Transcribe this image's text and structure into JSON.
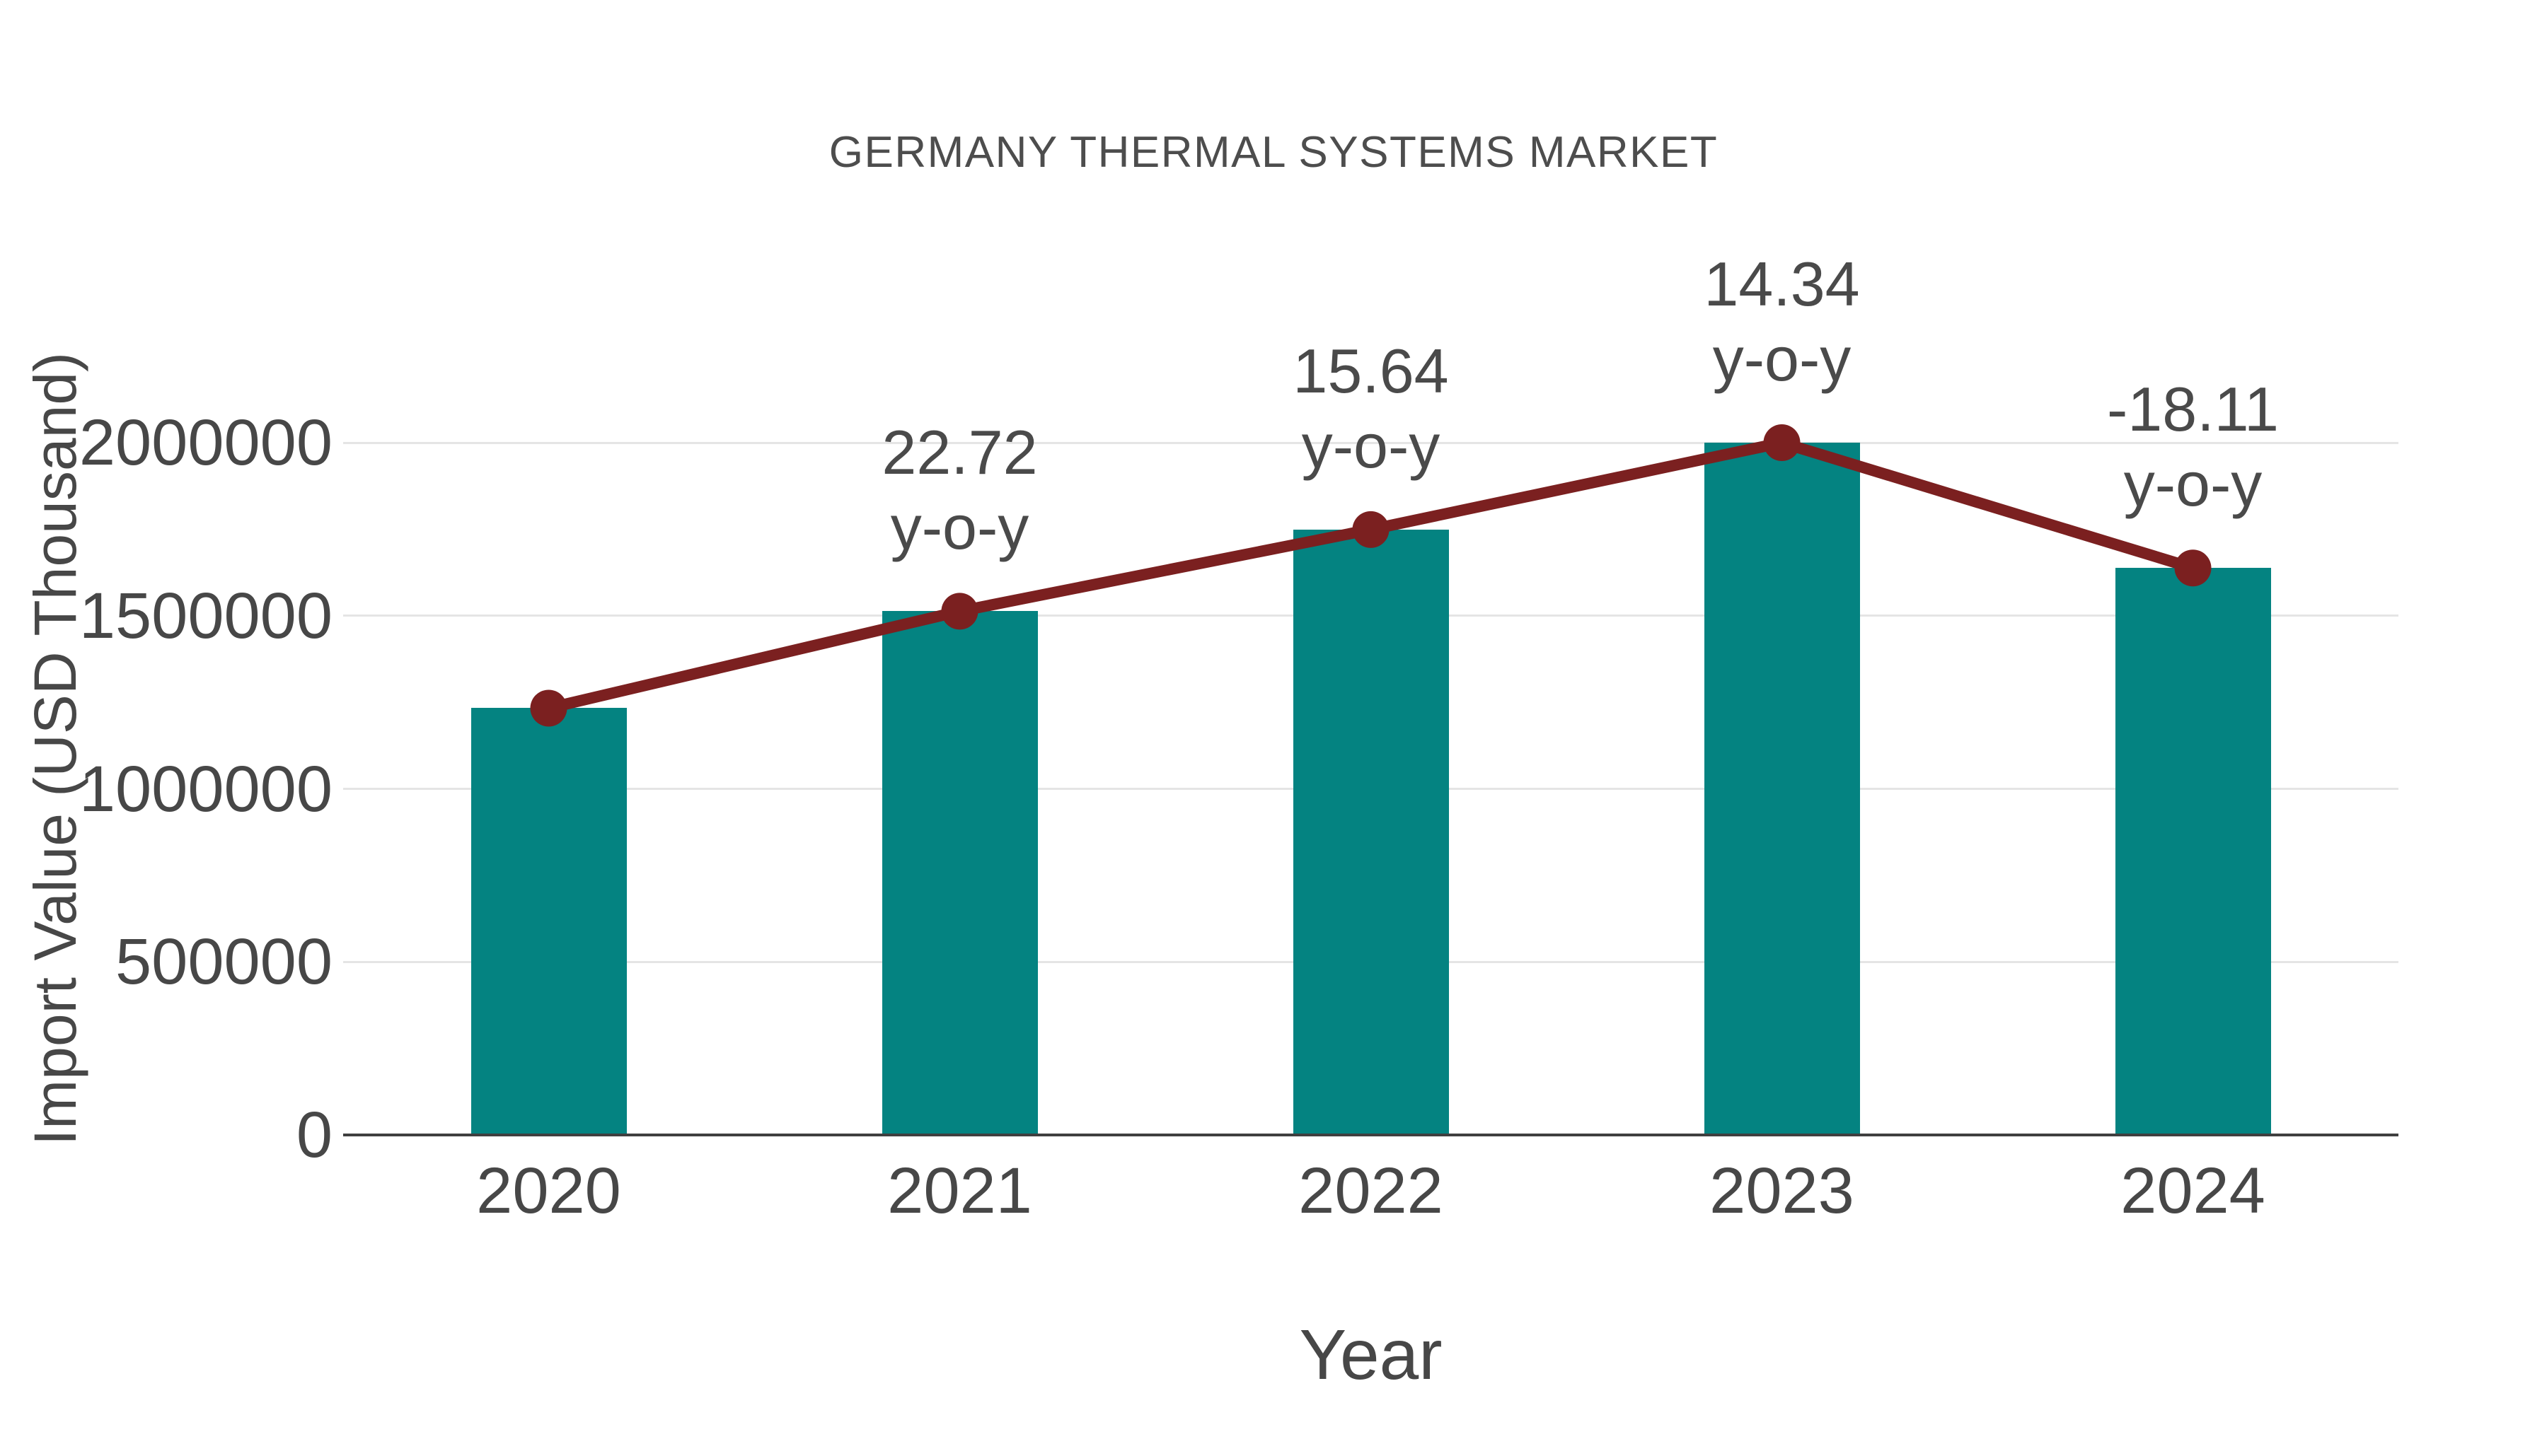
{
  "chart_data": {
    "type": "bar",
    "title": "GERMANY THERMAL SYSTEMS MARKET",
    "xlabel": "Year",
    "ylabel": "Import Value (USD Thousand)",
    "categories": [
      "2020",
      "2021",
      "2022",
      "2023",
      "2024"
    ],
    "series": [
      {
        "name": "Import Value (USD Thousand)",
        "type": "bar",
        "color": "#048381",
        "values": [
          1233000,
          1513000,
          1749000,
          2000000,
          1638000
        ]
      },
      {
        "name": "y-o-y change (%)",
        "type": "line",
        "color": "#7b2020",
        "values": [
          null,
          22.72,
          15.64,
          14.34,
          -18.11
        ],
        "note": "line with round markers drawn through the tops of the bars"
      }
    ],
    "point_labels": [
      {
        "category": "2021",
        "line1": "22.72",
        "line2": "y-o-y"
      },
      {
        "category": "2022",
        "line1": "15.64",
        "line2": "y-o-y"
      },
      {
        "category": "2023",
        "line1": "14.34",
        "line2": "y-o-y"
      },
      {
        "category": "2024",
        "line1": "-18.11",
        "line2": "y-o-y"
      }
    ],
    "ylim": [
      0,
      2000000
    ],
    "yticks": [
      {
        "value": 0,
        "label": "0"
      },
      {
        "value": 500000,
        "label": "500000"
      },
      {
        "value": 1000000,
        "label": "1000000"
      },
      {
        "value": 1500000,
        "label": "1500000"
      },
      {
        "value": 2000000,
        "label": "2000000"
      }
    ],
    "grid": "horizontal",
    "legend": "none",
    "colors": {
      "bar": "#048381",
      "line": "#7b2020",
      "marker": "#7b2020",
      "text": "#474747",
      "title_text": "#4d4d4d",
      "gridline": "#e5e5e5",
      "axis_line": "#3f3f3f",
      "background": "#ffffff"
    }
  }
}
